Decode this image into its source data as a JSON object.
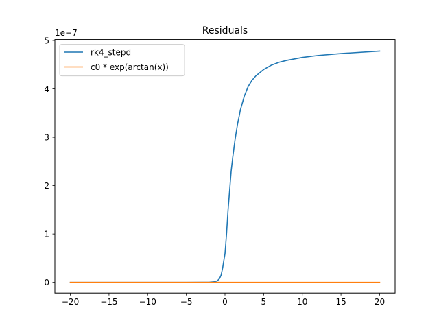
{
  "chart_data": {
    "type": "line",
    "title": "Residuals",
    "xlabel": "",
    "ylabel": "",
    "y_offset_label": "1e−7",
    "xlim": [
      -22,
      22
    ],
    "ylim": [
      -2.2e-08,
      5.02e-07
    ],
    "xticks": [
      -20,
      -15,
      -10,
      -5,
      0,
      5,
      10,
      15,
      20
    ],
    "xtick_labels": [
      "−20",
      "−15",
      "−10",
      "−5",
      "0",
      "5",
      "10",
      "15",
      "20"
    ],
    "yticks": [
      0,
      1e-07,
      2e-07,
      3e-07,
      4e-07,
      5e-07
    ],
    "ytick_labels": [
      "0",
      "1",
      "2",
      "3",
      "4",
      "5"
    ],
    "grid": false,
    "legend_position": "top-left",
    "series": [
      {
        "name": "rk4_stepd",
        "color": "#1f77b4",
        "x": [
          -20,
          -15,
          -10,
          -5,
          -3,
          -2,
          -1.5,
          -1,
          -0.7,
          -0.5,
          -0.3,
          -0.1,
          0,
          0.2,
          0.4,
          0.6,
          0.8,
          1,
          1.3,
          1.6,
          2,
          2.5,
          3,
          3.5,
          4,
          5,
          6,
          7,
          8,
          10,
          12,
          15,
          20
        ],
        "y": [
          0,
          0,
          0,
          0,
          1e-10,
          4e-10,
          1e-09,
          3e-09,
          8e-09,
          1.5e-08,
          3e-08,
          5e-08,
          5.9e-08,
          1e-07,
          1.5e-07,
          1.9e-07,
          2.3e-07,
          2.58e-07,
          2.95e-07,
          3.25e-07,
          3.57e-07,
          3.85e-07,
          4.05e-07,
          4.18e-07,
          4.27e-07,
          4.4e-07,
          4.49e-07,
          4.55e-07,
          4.59e-07,
          4.65e-07,
          4.69e-07,
          4.73e-07,
          4.78e-07
        ]
      },
      {
        "name": "c0 * exp(arctan(x))",
        "color": "#ff7f0e",
        "x": [
          -20,
          20
        ],
        "y": [
          0,
          0
        ]
      }
    ]
  }
}
